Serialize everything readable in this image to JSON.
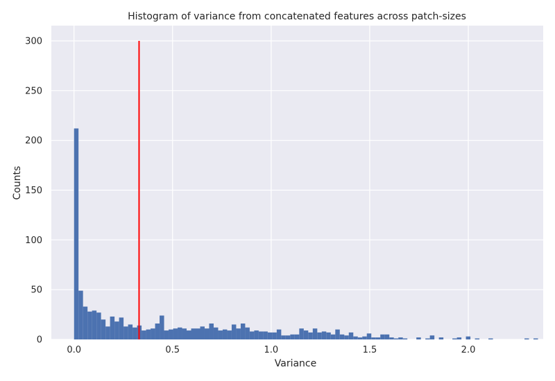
{
  "chart_data": {
    "type": "bar",
    "title": "Histogram of variance from concatenated features across patch-sizes",
    "xlabel": "Variance",
    "ylabel": "Counts",
    "xlim": [
      -0.115,
      2.38
    ],
    "ylim": [
      0,
      300
    ],
    "xticks": [
      0.0,
      0.5,
      1.0,
      1.5,
      2.0
    ],
    "xtick_labels": [
      "0.0",
      "0.5",
      "1.0",
      "1.5",
      "2.0"
    ],
    "yticks": [
      0,
      50,
      100,
      150,
      200,
      250,
      300
    ],
    "ytick_labels": [
      "0",
      "50",
      "100",
      "150",
      "200",
      "250",
      "300"
    ],
    "grid": true,
    "bin_width": 0.02285,
    "bins_start": 0.0,
    "values": [
      212,
      49,
      33,
      28,
      29,
      27,
      20,
      13,
      23,
      18,
      22,
      13,
      15,
      12,
      14,
      9,
      10,
      11,
      16,
      24,
      9,
      10,
      11,
      12,
      11,
      9,
      11,
      11,
      13,
      11,
      16,
      12,
      9,
      10,
      9,
      15,
      11,
      16,
      12,
      8,
      9,
      8,
      8,
      7,
      7,
      10,
      4,
      4,
      5,
      5,
      11,
      9,
      7,
      11,
      7,
      8,
      7,
      5,
      10,
      5,
      4,
      7,
      3,
      2,
      3,
      6,
      2,
      2,
      5,
      5,
      2,
      1,
      2,
      1,
      0,
      0,
      2,
      0,
      1,
      4,
      0,
      2,
      0,
      0,
      1,
      2,
      0,
      3,
      0,
      1,
      0,
      0,
      1,
      0,
      0,
      0,
      0,
      0,
      0,
      0,
      1,
      0,
      1
    ],
    "series": [
      {
        "values": "see values"
      }
    ],
    "reference_line": {
      "x": 0.33,
      "y_range": [
        0,
        300
      ],
      "color": "#ff0000"
    },
    "colors": {
      "bars": "#4c72b0",
      "background": "#eaeaf2",
      "grid": "#ffffff"
    }
  }
}
